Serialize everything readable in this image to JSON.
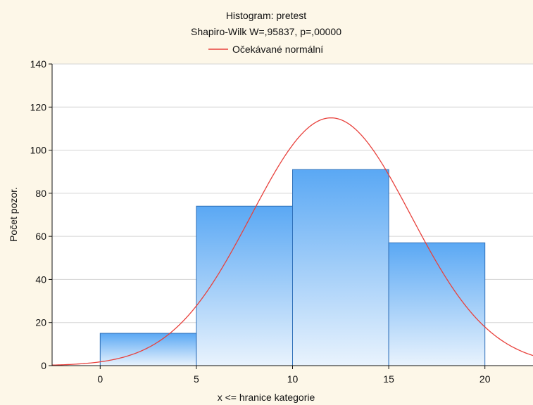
{
  "chart_data": {
    "type": "bar",
    "title": "Histogram: pretest",
    "subtitle": "Shapiro-Wilk W=,95837, p=,00000",
    "legend": [
      {
        "name": "Očekávané normální",
        "color": "#e8413c"
      }
    ],
    "legend_position": "top-center",
    "xlabel": "x <= hranice kategorie",
    "ylabel": "Počet pozor.",
    "xlim": [
      -2.5,
      22.5
    ],
    "ylim": [
      0,
      140
    ],
    "x_ticks": [
      0,
      5,
      10,
      15,
      20
    ],
    "y_ticks": [
      0,
      20,
      40,
      60,
      80,
      100,
      120,
      140
    ],
    "grid": {
      "horizontal": true,
      "vertical": false
    },
    "bins": [
      {
        "from": 0,
        "to": 5,
        "value": 15
      },
      {
        "from": 5,
        "to": 10,
        "value": 74
      },
      {
        "from": 10,
        "to": 15,
        "value": 91
      },
      {
        "from": 15,
        "to": 20,
        "value": 57
      }
    ],
    "normal_curve": {
      "name": "Očekávané normální",
      "mean": 12,
      "sd": 4.15,
      "peak": 115
    },
    "colors": {
      "bar_top": "#5aa8f4",
      "bar_bottom": "#e9f3fd",
      "bar_border": "#2e6fb8",
      "curve": "#e8413c",
      "background": "#fdf7e8",
      "plot_background": "#ffffff",
      "grid": "#d4d4d4"
    }
  }
}
